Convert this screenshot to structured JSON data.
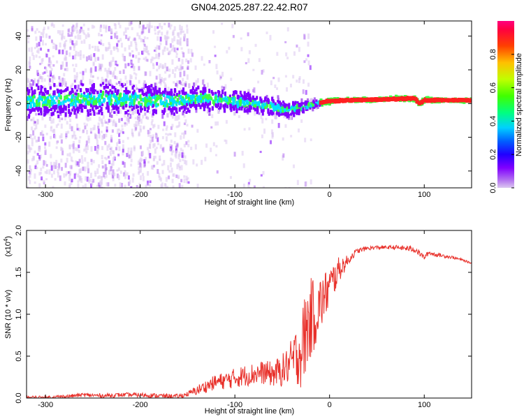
{
  "title": "GN04.2025.287.22.42.R07",
  "chart_data": [
    {
      "type": "heatmap",
      "xlabel": "Height of straight line (km)",
      "ylabel": "Frequency (Hz)",
      "xlim": [
        -320,
        150
      ],
      "ylim": [
        -50,
        49
      ],
      "x_ticks": [
        -300,
        -200,
        -100,
        0,
        100
      ],
      "y_ticks": [
        -40,
        -20,
        0,
        20,
        40
      ],
      "colorbar": {
        "label": "Normalized spectral amplitude",
        "range": [
          0,
          1
        ],
        "ticks": [
          "0.0",
          "0.2",
          "0.4",
          "0.6",
          "0.8"
        ]
      },
      "ridge": {
        "x": [
          -320,
          -280,
          -240,
          -200,
          -160,
          -130,
          -100,
          -80,
          -60,
          -45,
          -35,
          -20,
          -10,
          0,
          20,
          60,
          80,
          90,
          95,
          100,
          120,
          150
        ],
        "freq": [
          1,
          2,
          3,
          2,
          2,
          3,
          1,
          0,
          -2,
          -4,
          -3,
          -1,
          0.5,
          1.5,
          2,
          2.5,
          3,
          3,
          0,
          2,
          2,
          2
        ]
      },
      "scatter_zone": {
        "x": [
          -320,
          -280,
          -240,
          -200,
          -160,
          -130,
          -100,
          -80,
          -60,
          -45,
          -35,
          -20,
          -10,
          0,
          20,
          60,
          80,
          90,
          95,
          100,
          120,
          150
        ],
        "width_hz": [
          14,
          14,
          13,
          13,
          12,
          10,
          9,
          8,
          7,
          7,
          6,
          4,
          3,
          2,
          1.5,
          1.5,
          2,
          2,
          2,
          2,
          1.5,
          1.5
        ]
      },
      "colors": {
        "low": "#dcc8f0",
        "mid": "#8000ff",
        "high_cyan": "#00e0ff",
        "high_green": "#40ff40",
        "peak": "#ff2020"
      },
      "colorscale": [
        "#dcc8f0",
        "#b06cf0",
        "#8000ff",
        "#4000ff",
        "#0000ff",
        "#0080ff",
        "#00ffff",
        "#00ff80",
        "#00ff00",
        "#80ff00",
        "#ffff00",
        "#ff8000",
        "#ff0000",
        "#ff0080"
      ]
    },
    {
      "type": "line",
      "xlabel": "Height of straight line (km)",
      "ylabel": "SNR (10 * v/v)",
      "scale_note": "(x10",
      "scale_exp": "4",
      "xlim": [
        -320,
        150
      ],
      "ylim": [
        0,
        2.0
      ],
      "x_ticks": [
        -300,
        -200,
        -100,
        0,
        100
      ],
      "y_ticks": [
        "0.0",
        "0.5",
        "1.0",
        "1.5",
        "2.0"
      ],
      "color": "#e8302a",
      "series": [
        {
          "x": [
            -320,
            -300,
            -280,
            -260,
            -240,
            -220,
            -200,
            -180,
            -160,
            -150,
            -140,
            -130,
            -120,
            -110,
            -100,
            -90,
            -80,
            -70,
            -60,
            -50,
            -40,
            -35,
            -30,
            -25,
            -20,
            -15,
            -10,
            -5,
            0,
            5,
            10,
            15,
            20,
            25,
            30,
            40,
            50,
            60,
            70,
            80,
            90,
            95,
            100,
            105,
            110,
            120,
            130,
            140,
            150
          ],
          "y": [
            0.01,
            0.01,
            0.02,
            0.04,
            0.03,
            0.04,
            0.04,
            0.03,
            0.02,
            0.05,
            0.1,
            0.15,
            0.2,
            0.22,
            0.25,
            0.28,
            0.3,
            0.32,
            0.3,
            0.35,
            0.45,
            0.55,
            0.6,
            0.85,
            1.0,
            1.05,
            1.15,
            1.25,
            1.35,
            1.45,
            1.55,
            1.6,
            1.65,
            1.72,
            1.76,
            1.79,
            1.8,
            1.8,
            1.8,
            1.79,
            1.78,
            1.73,
            1.68,
            1.74,
            1.72,
            1.7,
            1.68,
            1.65,
            1.61
          ]
        }
      ],
      "noise_amp": {
        "x": [
          -320,
          -150,
          -140,
          -100,
          -60,
          -45,
          -35,
          -25,
          -10,
          0,
          10,
          20,
          30,
          60,
          90,
          100,
          150
        ],
        "amp": [
          0.02,
          0.03,
          0.06,
          0.12,
          0.15,
          0.22,
          0.35,
          0.55,
          0.35,
          0.25,
          0.15,
          0.06,
          0.03,
          0.02,
          0.04,
          0.03,
          0.01
        ]
      }
    }
  ]
}
